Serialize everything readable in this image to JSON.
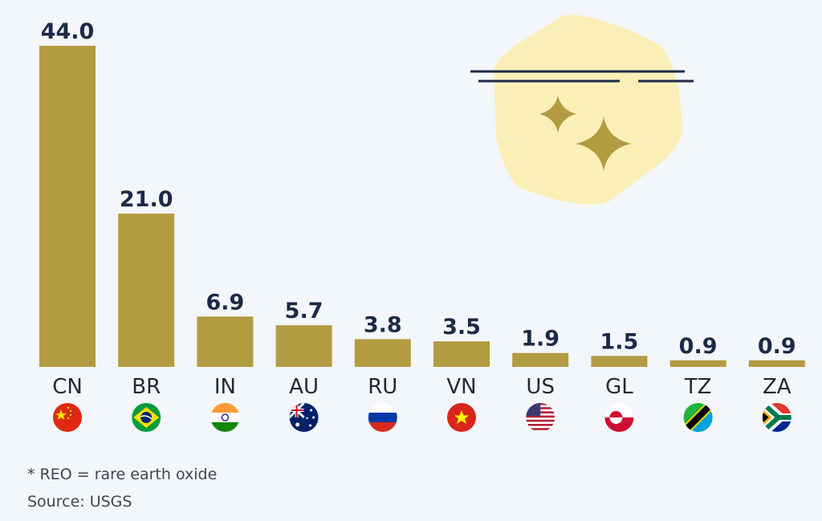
{
  "chart_data": {
    "type": "bar",
    "categories": [
      "CN",
      "BR",
      "IN",
      "AU",
      "RU",
      "VN",
      "US",
      "GL",
      "TZ",
      "ZA"
    ],
    "values": [
      44.0,
      21.0,
      6.9,
      5.7,
      3.8,
      3.5,
      1.9,
      1.5,
      0.9,
      0.9
    ],
    "value_labels": [
      "44.0",
      "21.0",
      "6.9",
      "5.7",
      "3.8",
      "3.5",
      "1.9",
      "1.5",
      "0.9",
      "0.9"
    ],
    "ylim": [
      0,
      44
    ],
    "grid": false,
    "bar_color": "#b39b42",
    "flag_icons": [
      "flag-cn-icon",
      "flag-br-icon",
      "flag-in-icon",
      "flag-au-icon",
      "flag-ru-icon",
      "flag-vn-icon",
      "flag-us-icon",
      "flag-gl-icon",
      "flag-tz-icon",
      "flag-za-icon"
    ]
  },
  "footer": {
    "note": "* REO = rare earth oxide",
    "source": "Source: USGS"
  },
  "colors": {
    "background": "#f3f6fa",
    "value_text": "#1b2a47",
    "label_text": "#1f2937",
    "decoration_bg": "#fbefb8"
  }
}
